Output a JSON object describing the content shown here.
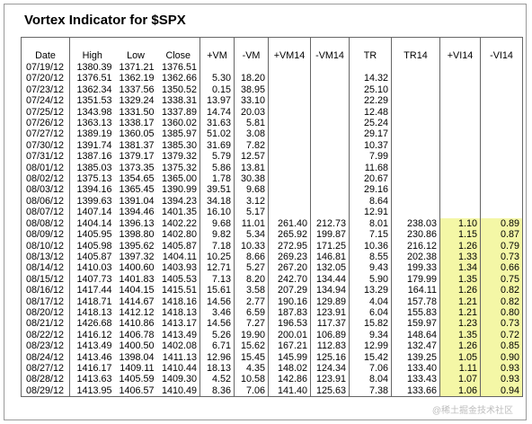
{
  "title": "Vortex Indicator for $SPX",
  "headers": [
    "Date",
    "High",
    "Low",
    "Close",
    "+VM",
    "-VM",
    "+VM14",
    "-VM14",
    "TR",
    "TR14",
    "+VI14",
    "-VI14"
  ],
  "rows": [
    [
      "07/19/12",
      "1380.39",
      "1371.21",
      "1376.51",
      "",
      "",
      "",
      "",
      "",
      "",
      "",
      ""
    ],
    [
      "07/20/12",
      "1376.51",
      "1362.19",
      "1362.66",
      "5.30",
      "18.20",
      "",
      "",
      "14.32",
      "",
      "",
      ""
    ],
    [
      "07/23/12",
      "1362.34",
      "1337.56",
      "1350.52",
      "0.15",
      "38.95",
      "",
      "",
      "25.10",
      "",
      "",
      ""
    ],
    [
      "07/24/12",
      "1351.53",
      "1329.24",
      "1338.31",
      "13.97",
      "33.10",
      "",
      "",
      "22.29",
      "",
      "",
      ""
    ],
    [
      "07/25/12",
      "1343.98",
      "1331.50",
      "1337.89",
      "14.74",
      "20.03",
      "",
      "",
      "12.48",
      "",
      "",
      ""
    ],
    [
      "07/26/12",
      "1363.13",
      "1338.17",
      "1360.02",
      "31.63",
      "5.81",
      "",
      "",
      "25.24",
      "",
      "",
      ""
    ],
    [
      "07/27/12",
      "1389.19",
      "1360.05",
      "1385.97",
      "51.02",
      "3.08",
      "",
      "",
      "29.17",
      "",
      "",
      ""
    ],
    [
      "07/30/12",
      "1391.74",
      "1381.37",
      "1385.30",
      "31.69",
      "7.82",
      "",
      "",
      "10.37",
      "",
      "",
      ""
    ],
    [
      "07/31/12",
      "1387.16",
      "1379.17",
      "1379.32",
      "5.79",
      "12.57",
      "",
      "",
      "7.99",
      "",
      "",
      ""
    ],
    [
      "08/01/12",
      "1385.03",
      "1373.35",
      "1375.32",
      "5.86",
      "13.81",
      "",
      "",
      "11.68",
      "",
      "",
      ""
    ],
    [
      "08/02/12",
      "1375.13",
      "1354.65",
      "1365.00",
      "1.78",
      "30.38",
      "",
      "",
      "20.67",
      "",
      "",
      ""
    ],
    [
      "08/03/12",
      "1394.16",
      "1365.45",
      "1390.99",
      "39.51",
      "9.68",
      "",
      "",
      "29.16",
      "",
      "",
      ""
    ],
    [
      "08/06/12",
      "1399.63",
      "1391.04",
      "1394.23",
      "34.18",
      "3.12",
      "",
      "",
      "8.64",
      "",
      "",
      ""
    ],
    [
      "08/07/12",
      "1407.14",
      "1394.46",
      "1401.35",
      "16.10",
      "5.17",
      "",
      "",
      "12.91",
      "",
      "",
      ""
    ],
    [
      "08/08/12",
      "1404.14",
      "1396.13",
      "1402.22",
      "9.68",
      "11.01",
      "261.40",
      "212.73",
      "8.01",
      "238.03",
      "1.10",
      "0.89"
    ],
    [
      "08/09/12",
      "1405.95",
      "1398.80",
      "1402.80",
      "9.82",
      "5.34",
      "265.92",
      "199.87",
      "7.15",
      "230.86",
      "1.15",
      "0.87"
    ],
    [
      "08/10/12",
      "1405.98",
      "1395.62",
      "1405.87",
      "7.18",
      "10.33",
      "272.95",
      "171.25",
      "10.36",
      "216.12",
      "1.26",
      "0.79"
    ],
    [
      "08/13/12",
      "1405.87",
      "1397.32",
      "1404.11",
      "10.25",
      "8.66",
      "269.23",
      "146.81",
      "8.55",
      "202.38",
      "1.33",
      "0.73"
    ],
    [
      "08/14/12",
      "1410.03",
      "1400.60",
      "1403.93",
      "12.71",
      "5.27",
      "267.20",
      "132.05",
      "9.43",
      "199.33",
      "1.34",
      "0.66"
    ],
    [
      "08/15/12",
      "1407.73",
      "1401.83",
      "1405.53",
      "7.13",
      "8.20",
      "242.70",
      "134.44",
      "5.90",
      "179.99",
      "1.35",
      "0.75"
    ],
    [
      "08/16/12",
      "1417.44",
      "1404.15",
      "1415.51",
      "15.61",
      "3.58",
      "207.29",
      "134.94",
      "13.29",
      "164.11",
      "1.26",
      "0.82"
    ],
    [
      "08/17/12",
      "1418.71",
      "1414.67",
      "1418.16",
      "14.56",
      "2.77",
      "190.16",
      "129.89",
      "4.04",
      "157.78",
      "1.21",
      "0.82"
    ],
    [
      "08/20/12",
      "1418.13",
      "1412.12",
      "1418.13",
      "3.46",
      "6.59",
      "187.83",
      "123.91",
      "6.04",
      "155.83",
      "1.21",
      "0.80"
    ],
    [
      "08/21/12",
      "1426.68",
      "1410.86",
      "1413.17",
      "14.56",
      "7.27",
      "196.53",
      "117.37",
      "15.82",
      "159.97",
      "1.23",
      "0.73"
    ],
    [
      "08/22/12",
      "1416.12",
      "1406.78",
      "1413.49",
      "5.26",
      "19.90",
      "200.01",
      "106.89",
      "9.34",
      "148.64",
      "1.35",
      "0.72"
    ],
    [
      "08/23/12",
      "1413.49",
      "1400.50",
      "1402.08",
      "6.71",
      "15.62",
      "167.21",
      "112.83",
      "12.99",
      "132.47",
      "1.26",
      "0.85"
    ],
    [
      "08/24/12",
      "1413.46",
      "1398.04",
      "1411.13",
      "12.96",
      "15.45",
      "145.99",
      "125.16",
      "15.42",
      "139.25",
      "1.05",
      "0.90"
    ],
    [
      "08/27/12",
      "1416.17",
      "1409.11",
      "1410.44",
      "18.13",
      "4.35",
      "148.02",
      "124.34",
      "7.06",
      "133.40",
      "1.11",
      "0.93"
    ],
    [
      "08/28/12",
      "1413.63",
      "1405.59",
      "1409.30",
      "4.52",
      "10.58",
      "142.86",
      "123.91",
      "8.04",
      "133.43",
      "1.07",
      "0.93"
    ],
    [
      "08/29/12",
      "1413.95",
      "1406.57",
      "1410.49",
      "8.36",
      "7.06",
      "141.40",
      "125.63",
      "7.38",
      "133.66",
      "1.06",
      "0.94"
    ]
  ],
  "watermark": "@稀土掘金技术社区",
  "colors": {
    "highlight": "#f4f7a6",
    "border": "#666666"
  }
}
